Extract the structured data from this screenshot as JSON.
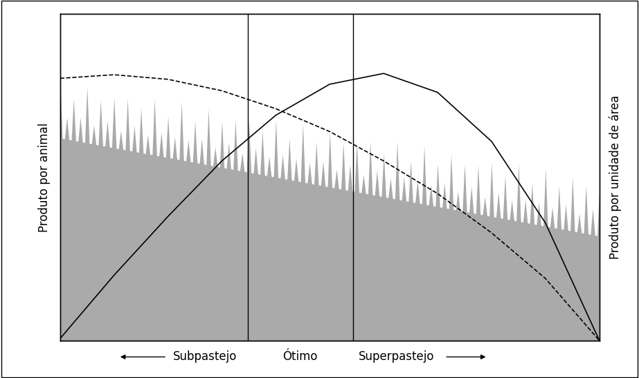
{
  "chart_data": {
    "type": "line",
    "x": [
      0,
      10,
      20,
      30,
      40,
      50,
      60,
      70,
      80,
      90,
      100
    ],
    "series": [
      {
        "name": "Produto por animal",
        "color": "#000000",
        "line_style": "dashed",
        "values": [
          80.3,
          81.4,
          80,
          76.5,
          71,
          64,
          55,
          45,
          33,
          19,
          0
        ]
      },
      {
        "name": "Produto por unidade de área",
        "color": "#000000",
        "line_style": "solid",
        "axis": "y2",
        "values": [
          0.6,
          20,
          38,
          55,
          69,
          78.5,
          81.8,
          76,
          61,
          36,
          0
        ]
      }
    ],
    "dividers": [
      34.8,
      54.3
    ],
    "zones": [
      "Subpastejo",
      "Ótimo",
      "Superpastejo"
    ],
    "xlim": [
      0,
      100
    ],
    "ylim": [
      0,
      100
    ],
    "y2lim": [
      0,
      100
    ],
    "xticks": [],
    "yticks": [],
    "y2ticks": [],
    "tick_labels": false,
    "grid": false
  }
}
